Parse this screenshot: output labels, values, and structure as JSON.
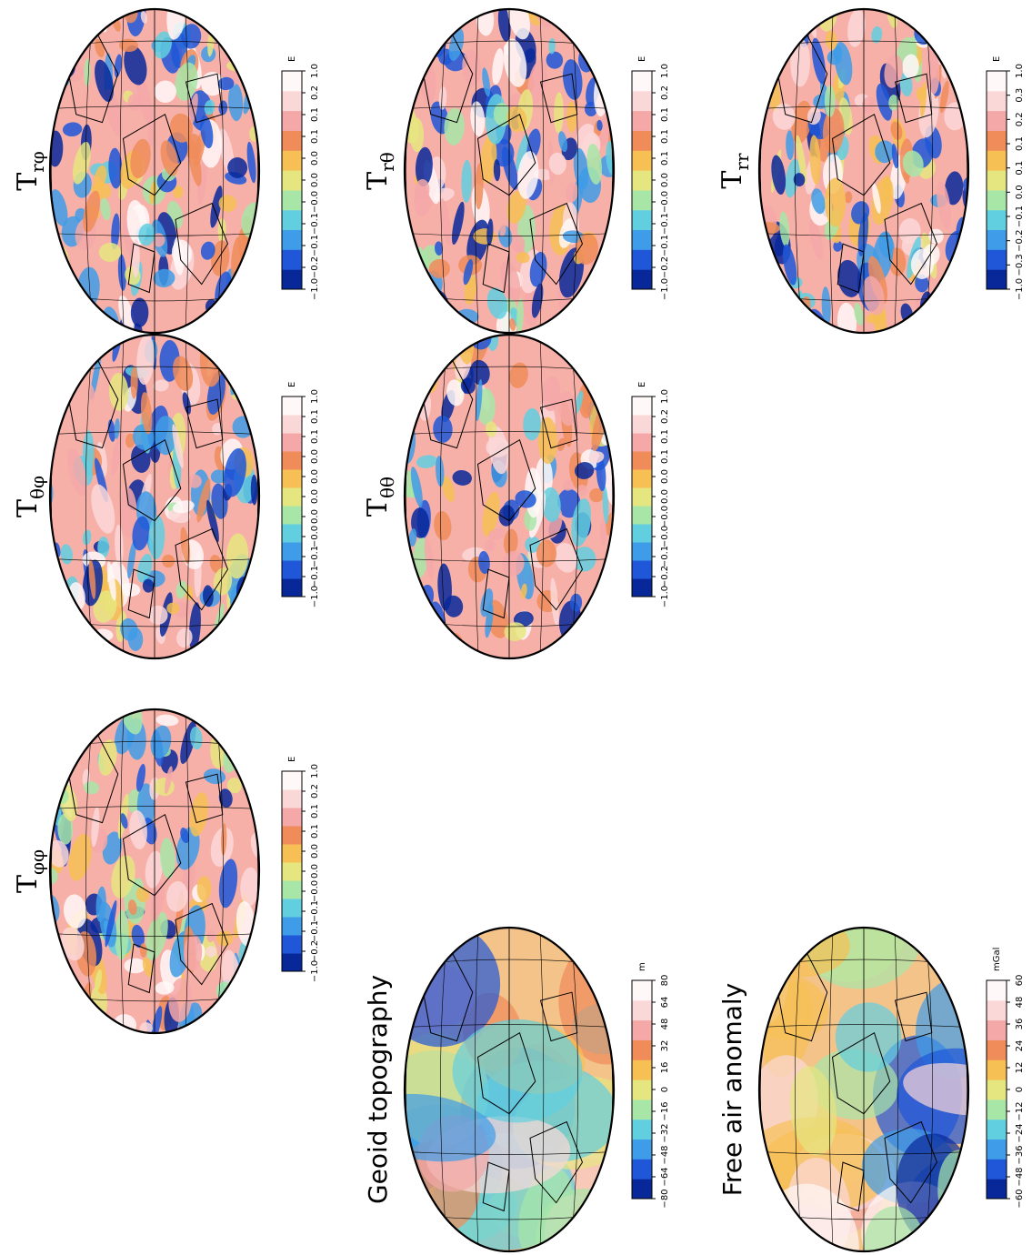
{
  "panels": [
    {
      "id": "t-phiphi",
      "title": "T",
      "subscript": "φφ",
      "unit": "E",
      "ticks": [
        "−1.0",
        "−0.2",
        "−0.1",
        "−0.1",
        "−0.0",
        "0.0",
        "0.0",
        "0.1",
        "0.1",
        "0.2",
        "1.0"
      ]
    },
    {
      "id": "t-thetaphi",
      "title": "T",
      "subscript": "θφ",
      "unit": "E",
      "ticks": [
        "−1.0",
        "−0.1",
        "−0.1",
        "−0.0",
        "0.0",
        "0.0",
        "0.0",
        "0.0",
        "0.1",
        "0.1",
        "1.0"
      ]
    },
    {
      "id": "t-rphi",
      "title": "T",
      "subscript": "rφ",
      "unit": "E",
      "ticks": [
        "−1.0",
        "−0.2",
        "−0.1",
        "−0.1",
        "−0.0",
        "0.0",
        "0.0",
        "0.1",
        "0.1",
        "0.2",
        "1.0"
      ]
    },
    {
      "id": "t-thetatheta",
      "title": "T",
      "subscript": "θθ",
      "unit": "E",
      "ticks": [
        "−1.0",
        "−0.2",
        "−0.1",
        "−0.0",
        "−0.0",
        "0.0",
        "0.0",
        "0.1",
        "0.1",
        "0.2",
        "1.0"
      ]
    },
    {
      "id": "t-rtheta",
      "title": "T",
      "subscript": "rθ",
      "unit": "E",
      "ticks": [
        "−1.0",
        "−0.2",
        "−0.1",
        "−0.1",
        "−0.0",
        "0.0",
        "0.1",
        "0.1",
        "0.1",
        "0.2",
        "1.0"
      ]
    },
    {
      "id": "geoid",
      "title": "Geoid topography",
      "subscript": "",
      "unit": "m",
      "ticks": [
        "−80",
        "−64",
        "−48",
        "−32",
        "−16",
        "0",
        "16",
        "32",
        "48",
        "64",
        "80"
      ]
    },
    {
      "id": "t-rr",
      "title": "T",
      "subscript": "rr",
      "unit": "E",
      "ticks": [
        "−1.0",
        "−0.3",
        "−0.2",
        "−0.1",
        "0.0",
        "0.1",
        "0.1",
        "0.2",
        "0.3",
        "1.0"
      ]
    },
    {
      "id": "free-air",
      "title": "Free air anomaly",
      "subscript": "",
      "unit": "mGal",
      "ticks": [
        "−60",
        "−48",
        "−36",
        "−24",
        "−12",
        "0",
        "12",
        "24",
        "36",
        "48",
        "60"
      ]
    }
  ],
  "colors": {
    "scale": [
      "#08289a",
      "#1f57d8",
      "#3f9ce8",
      "#62cfe0",
      "#a8e6a8",
      "#e6e680",
      "#f6c055",
      "#f08c5a",
      "#f4a8a8",
      "#fbd8d8",
      "#fff8f8"
    ],
    "ocean_base": "#f6b0a8",
    "continent_line": "#000000"
  }
}
